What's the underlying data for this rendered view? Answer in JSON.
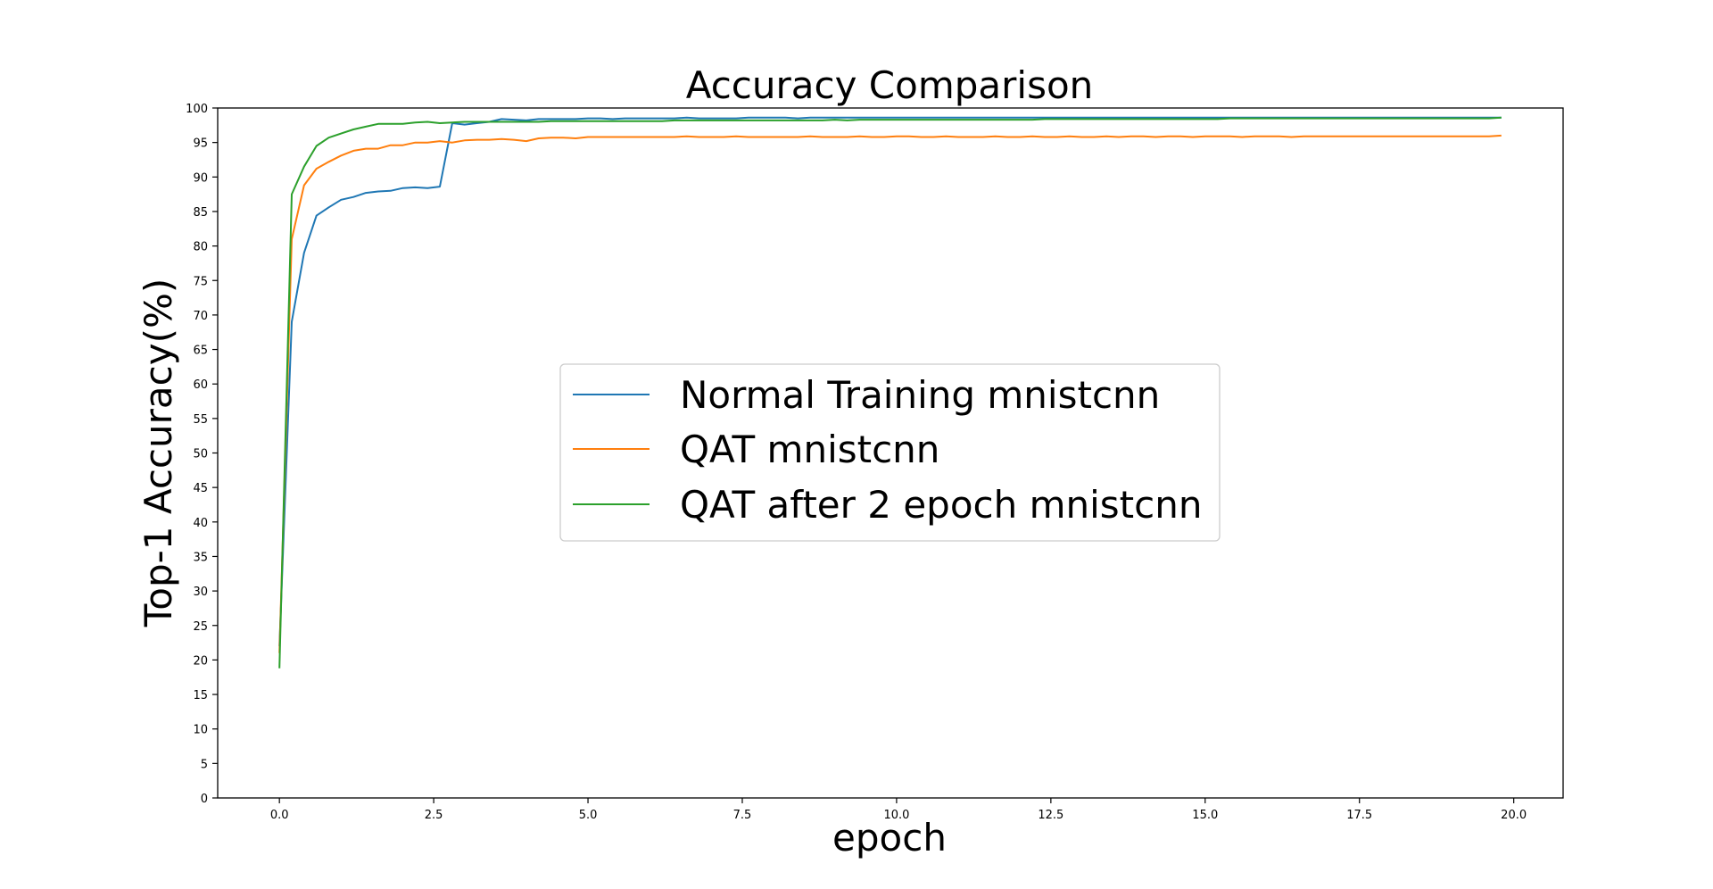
{
  "chart_data": {
    "type": "line",
    "title": "Accuracy Comparison",
    "xlabel": "epoch",
    "ylabel": "Top-1 Accuracy(%)",
    "xlim": [
      -1.0,
      20.8
    ],
    "ylim": [
      0,
      100
    ],
    "x_ticks": [
      0.0,
      2.5,
      5.0,
      7.5,
      10.0,
      12.5,
      15.0,
      17.5,
      20.0
    ],
    "x_tick_labels": [
      "0.0",
      "2.5",
      "5.0",
      "7.5",
      "10.0",
      "12.5",
      "15.0",
      "17.5",
      "20.0"
    ],
    "y_ticks": [
      0,
      5,
      10,
      15,
      20,
      25,
      30,
      35,
      40,
      45,
      50,
      55,
      60,
      65,
      70,
      75,
      80,
      85,
      90,
      95,
      100
    ],
    "y_tick_labels": [
      "0",
      "5",
      "10",
      "15",
      "20",
      "25",
      "30",
      "35",
      "40",
      "45",
      "50",
      "55",
      "60",
      "65",
      "70",
      "75",
      "80",
      "85",
      "90",
      "95",
      "100"
    ],
    "grid": false,
    "legend_position": "center",
    "x": [
      0.0,
      0.2,
      0.4,
      0.6,
      0.8,
      1.0,
      1.2,
      1.4,
      1.6,
      1.8,
      2.0,
      2.2,
      2.4,
      2.6,
      2.8,
      3.0,
      3.2,
      3.4,
      3.6,
      3.8,
      4.0,
      4.2,
      4.4,
      4.6,
      4.8,
      5.0,
      5.2,
      5.4,
      5.6,
      5.8,
      6.0,
      6.2,
      6.4,
      6.6,
      6.8,
      7.0,
      7.2,
      7.4,
      7.6,
      7.8,
      8.0,
      8.2,
      8.4,
      8.6,
      8.8,
      9.0,
      9.2,
      9.4,
      9.6,
      9.8,
      10.0,
      10.2,
      10.4,
      10.6,
      10.8,
      11.0,
      11.2,
      11.4,
      11.6,
      11.8,
      12.0,
      12.2,
      12.4,
      12.6,
      12.8,
      13.0,
      13.2,
      13.4,
      13.6,
      13.8,
      14.0,
      14.2,
      14.4,
      14.6,
      14.8,
      15.0,
      15.2,
      15.4,
      15.6,
      15.8,
      16.0,
      16.2,
      16.4,
      16.6,
      16.8,
      17.0,
      17.2,
      17.4,
      17.6,
      17.8,
      18.0,
      18.2,
      18.4,
      18.6,
      18.8,
      19.0,
      19.2,
      19.4,
      19.6,
      19.8
    ],
    "series": [
      {
        "name": "Normal Training mnistcnn",
        "color": "#1f77b4",
        "values": [
          22.0,
          69.0,
          79.0,
          84.4,
          85.6,
          86.7,
          87.1,
          87.7,
          87.9,
          88.0,
          88.4,
          88.5,
          88.4,
          88.6,
          97.8,
          97.6,
          97.8,
          98.0,
          98.4,
          98.3,
          98.2,
          98.4,
          98.4,
          98.4,
          98.4,
          98.5,
          98.5,
          98.4,
          98.5,
          98.5,
          98.5,
          98.5,
          98.5,
          98.6,
          98.5,
          98.5,
          98.5,
          98.5,
          98.6,
          98.6,
          98.6,
          98.6,
          98.5,
          98.6,
          98.6,
          98.6,
          98.6,
          98.6,
          98.6,
          98.6,
          98.6,
          98.6,
          98.6,
          98.6,
          98.6,
          98.6,
          98.6,
          98.6,
          98.6,
          98.6,
          98.6,
          98.6,
          98.6,
          98.6,
          98.6,
          98.6,
          98.6,
          98.6,
          98.6,
          98.6,
          98.6,
          98.6,
          98.6,
          98.6,
          98.6,
          98.6,
          98.6,
          98.6,
          98.6,
          98.6,
          98.6,
          98.6,
          98.6,
          98.6,
          98.6,
          98.6,
          98.6,
          98.6,
          98.6,
          98.6,
          98.6,
          98.6,
          98.6,
          98.6,
          98.6,
          98.6,
          98.6,
          98.6,
          98.6,
          98.6
        ]
      },
      {
        "name": "QAT mnistcnn",
        "color": "#ff7f0e",
        "values": [
          21.0,
          81.0,
          88.8,
          91.2,
          92.2,
          93.1,
          93.8,
          94.1,
          94.1,
          94.6,
          94.6,
          95.0,
          95.0,
          95.2,
          95.0,
          95.3,
          95.4,
          95.4,
          95.5,
          95.4,
          95.2,
          95.6,
          95.7,
          95.7,
          95.6,
          95.8,
          95.8,
          95.8,
          95.8,
          95.8,
          95.8,
          95.8,
          95.8,
          95.9,
          95.8,
          95.8,
          95.8,
          95.9,
          95.8,
          95.8,
          95.8,
          95.8,
          95.8,
          95.9,
          95.8,
          95.8,
          95.8,
          95.9,
          95.8,
          95.8,
          95.9,
          95.9,
          95.8,
          95.8,
          95.9,
          95.8,
          95.8,
          95.8,
          95.9,
          95.8,
          95.8,
          95.9,
          95.8,
          95.8,
          95.9,
          95.8,
          95.8,
          95.9,
          95.8,
          95.9,
          95.9,
          95.8,
          95.9,
          95.9,
          95.8,
          95.9,
          95.9,
          95.9,
          95.8,
          95.9,
          95.9,
          95.9,
          95.8,
          95.9,
          95.9,
          95.9,
          95.9,
          95.9,
          95.9,
          95.9,
          95.9,
          95.9,
          95.9,
          95.9,
          95.9,
          95.9,
          95.9,
          95.9,
          95.9,
          96.0
        ]
      },
      {
        "name": "QAT after 2 epoch mnistcnn",
        "color": "#2ca02c",
        "values": [
          18.8,
          87.5,
          91.5,
          94.5,
          95.7,
          96.3,
          96.9,
          97.3,
          97.7,
          97.7,
          97.7,
          97.9,
          98.0,
          97.8,
          97.9,
          98.0,
          98.0,
          98.0,
          98.0,
          98.0,
          98.0,
          98.0,
          98.1,
          98.1,
          98.1,
          98.1,
          98.1,
          98.1,
          98.1,
          98.1,
          98.1,
          98.1,
          98.2,
          98.2,
          98.2,
          98.2,
          98.2,
          98.2,
          98.2,
          98.2,
          98.2,
          98.2,
          98.2,
          98.2,
          98.2,
          98.3,
          98.2,
          98.3,
          98.3,
          98.3,
          98.3,
          98.3,
          98.3,
          98.3,
          98.3,
          98.3,
          98.3,
          98.3,
          98.3,
          98.3,
          98.3,
          98.3,
          98.4,
          98.4,
          98.4,
          98.4,
          98.4,
          98.4,
          98.4,
          98.4,
          98.4,
          98.4,
          98.4,
          98.4,
          98.4,
          98.4,
          98.4,
          98.5,
          98.5,
          98.5,
          98.5,
          98.5,
          98.5,
          98.5,
          98.5,
          98.5,
          98.5,
          98.5,
          98.5,
          98.5,
          98.5,
          98.5,
          98.5,
          98.5,
          98.5,
          98.5,
          98.5,
          98.5,
          98.5,
          98.6
        ]
      }
    ]
  }
}
